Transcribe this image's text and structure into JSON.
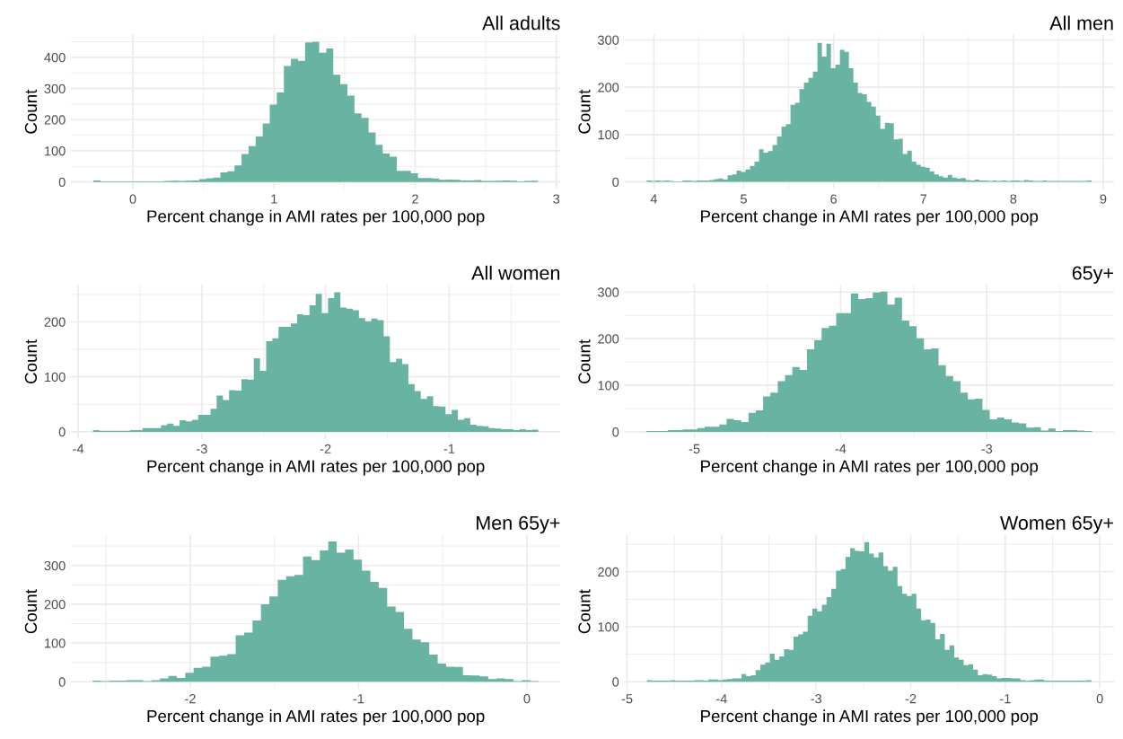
{
  "chart_data": [
    {
      "type": "histogram",
      "title": "All adults",
      "xlabel": "Percent change in AMI rates per 100,000 pop",
      "ylabel": "Count",
      "color": "#69b3a2",
      "grid": true,
      "bins": [
        -0.28,
        -0.23,
        -0.18,
        -0.13,
        -0.08,
        -0.03,
        0.02,
        0.07,
        0.12,
        0.17,
        0.22,
        0.27,
        0.32,
        0.37,
        0.42,
        0.47,
        0.52,
        0.57,
        0.62,
        0.67,
        0.72,
        0.77,
        0.82,
        0.87,
        0.92,
        0.97,
        1.02,
        1.07,
        1.12,
        1.17,
        1.22,
        1.27,
        1.32,
        1.37,
        1.42,
        1.47,
        1.52,
        1.57,
        1.62,
        1.67,
        1.72,
        1.77,
        1.82,
        1.87,
        1.92,
        1.97,
        2.02,
        2.07,
        2.12,
        2.17,
        2.22,
        2.27,
        2.32,
        2.37,
        2.42,
        2.47,
        2.52,
        2.57,
        2.62,
        2.67,
        2.72,
        2.77,
        2.82,
        2.87
      ],
      "values": [
        5,
        2,
        2,
        2,
        2,
        2,
        2,
        2,
        2,
        2,
        3,
        4,
        3,
        4,
        5,
        9,
        12,
        14,
        31,
        34,
        53,
        90,
        115,
        146,
        188,
        248,
        287,
        372,
        395,
        389,
        448,
        450,
        415,
        428,
        344,
        314,
        277,
        220,
        206,
        159,
        119,
        91,
        81,
        36,
        36,
        28,
        13,
        13,
        11,
        7,
        8,
        7,
        5,
        5,
        6,
        3,
        3,
        4,
        5,
        4,
        2,
        3,
        4
      ],
      "xlim": [
        -0.44,
        3.03
      ],
      "xticks": [
        0,
        1,
        2,
        3
      ],
      "ylim": [
        -22.5,
        472.5
      ],
      "yticks": [
        0,
        100,
        200,
        300,
        400
      ]
    },
    {
      "type": "histogram",
      "title": "All men",
      "xlabel": "Percent change in AMI rates per 100,000 pop",
      "ylabel": "Count",
      "color": "#69b3a2",
      "grid": true,
      "bins": [
        3.92,
        3.97,
        4.02,
        4.07,
        4.12,
        4.17,
        4.22,
        4.27,
        4.32,
        4.37,
        4.42,
        4.47,
        4.52,
        4.57,
        4.62,
        4.67,
        4.72,
        4.77,
        4.82,
        4.87,
        4.92,
        4.97,
        5.02,
        5.07,
        5.12,
        5.17,
        5.22,
        5.27,
        5.32,
        5.37,
        5.42,
        5.47,
        5.52,
        5.57,
        5.62,
        5.67,
        5.72,
        5.77,
        5.82,
        5.87,
        5.92,
        5.97,
        6.02,
        6.07,
        6.12,
        6.17,
        6.22,
        6.27,
        6.32,
        6.37,
        6.42,
        6.47,
        6.52,
        6.57,
        6.62,
        6.67,
        6.72,
        6.77,
        6.82,
        6.87,
        6.92,
        6.97,
        7.02,
        7.07,
        7.12,
        7.17,
        7.22,
        7.27,
        7.32,
        7.37,
        7.42,
        7.47,
        7.52,
        7.57,
        7.62,
        7.67,
        7.72,
        7.77,
        7.82,
        7.87,
        7.92,
        7.97,
        8.02,
        8.07,
        8.12,
        8.17,
        8.22,
        8.27,
        8.32,
        8.37,
        8.42,
        8.47,
        8.52,
        8.57,
        8.62,
        8.67,
        8.72,
        8.77,
        8.82,
        8.87
      ],
      "values": [
        3,
        2,
        3,
        2,
        3,
        2,
        1,
        1,
        3,
        3,
        2,
        3,
        3,
        3,
        4,
        6,
        7,
        5,
        14,
        16,
        24,
        21,
        26,
        34,
        43,
        69,
        62,
        65,
        78,
        96,
        117,
        122,
        163,
        167,
        196,
        210,
        220,
        233,
        294,
        265,
        292,
        240,
        248,
        279,
        275,
        240,
        210,
        188,
        185,
        169,
        159,
        140,
        112,
        125,
        124,
        90,
        91,
        59,
        66,
        43,
        36,
        32,
        30,
        22,
        16,
        12,
        9,
        15,
        9,
        7,
        8,
        4,
        3,
        5,
        3,
        3,
        2,
        3,
        2,
        3,
        2,
        3,
        3,
        2,
        4,
        3,
        2,
        2,
        3,
        2,
        2,
        2,
        2,
        2,
        2,
        2,
        2,
        2,
        3
      ],
      "xlim": [
        3.67,
        9.12
      ],
      "xticks": [
        4,
        5,
        6,
        7,
        8,
        9
      ],
      "ylim": [
        -15,
        311
      ],
      "yticks": [
        0,
        100,
        200,
        300
      ]
    },
    {
      "type": "histogram",
      "title": "All women",
      "xlabel": "Percent change in AMI rates per 100,000 pop",
      "ylabel": "Count",
      "color": "#69b3a2",
      "grid": true,
      "bins": [
        -3.88,
        -3.83,
        -3.78,
        -3.73,
        -3.68,
        -3.63,
        -3.58,
        -3.53,
        -3.48,
        -3.43,
        -3.38,
        -3.33,
        -3.28,
        -3.23,
        -3.18,
        -3.13,
        -3.08,
        -3.03,
        -2.98,
        -2.93,
        -2.88,
        -2.83,
        -2.78,
        -2.73,
        -2.68,
        -2.63,
        -2.58,
        -2.53,
        -2.48,
        -2.43,
        -2.38,
        -2.33,
        -2.28,
        -2.23,
        -2.18,
        -2.13,
        -2.08,
        -2.03,
        -1.98,
        -1.93,
        -1.88,
        -1.83,
        -1.78,
        -1.73,
        -1.68,
        -1.63,
        -1.58,
        -1.53,
        -1.48,
        -1.43,
        -1.38,
        -1.33,
        -1.28,
        -1.23,
        -1.18,
        -1.13,
        -1.08,
        -1.03,
        -0.98,
        -0.93,
        -0.88,
        -0.83,
        -0.78,
        -0.73,
        -0.68,
        -0.63,
        -0.58,
        -0.53,
        -0.48,
        -0.43,
        -0.38,
        -0.33,
        -0.28
      ],
      "values": [
        3,
        2,
        2,
        2,
        2,
        2,
        3,
        3,
        7,
        7,
        7,
        12,
        15,
        11,
        21,
        19,
        22,
        31,
        31,
        42,
        66,
        58,
        76,
        75,
        96,
        95,
        134,
        111,
        165,
        170,
        191,
        191,
        197,
        214,
        212,
        230,
        251,
        216,
        243,
        254,
        226,
        224,
        221,
        207,
        201,
        206,
        203,
        174,
        127,
        133,
        123,
        87,
        74,
        60,
        65,
        47,
        46,
        32,
        40,
        22,
        25,
        13,
        11,
        10,
        7,
        6,
        5,
        5,
        3,
        5,
        3,
        4
      ],
      "xlim": [
        -4.06,
        -0.1
      ],
      "xticks": [
        -4,
        -3,
        -2,
        -1
      ],
      "ylim": [
        -12.75,
        267.75
      ],
      "yticks": [
        0,
        100,
        200
      ]
    },
    {
      "type": "histogram",
      "title": "65y+",
      "xlabel": "Percent change in AMI rates per 100,000 pop",
      "ylabel": "Count",
      "color": "#69b3a2",
      "grid": true,
      "bins": [
        -5.33,
        -5.28,
        -5.23,
        -5.18,
        -5.13,
        -5.08,
        -5.03,
        -4.98,
        -4.93,
        -4.88,
        -4.83,
        -4.78,
        -4.73,
        -4.68,
        -4.63,
        -4.58,
        -4.53,
        -4.48,
        -4.43,
        -4.38,
        -4.33,
        -4.28,
        -4.23,
        -4.18,
        -4.13,
        -4.08,
        -4.03,
        -3.98,
        -3.93,
        -3.88,
        -3.83,
        -3.78,
        -3.73,
        -3.68,
        -3.63,
        -3.58,
        -3.53,
        -3.48,
        -3.43,
        -3.38,
        -3.33,
        -3.28,
        -3.23,
        -3.18,
        -3.13,
        -3.08,
        -3.03,
        -2.98,
        -2.93,
        -2.88,
        -2.83,
        -2.78,
        -2.73,
        -2.68,
        -2.63,
        -2.58,
        -2.53,
        -2.48,
        -2.43,
        -2.38,
        -2.33,
        -2.28
      ],
      "values": [
        2,
        2,
        2,
        4,
        4,
        5,
        5,
        8,
        11,
        11,
        16,
        28,
        25,
        21,
        41,
        46,
        76,
        84,
        109,
        122,
        139,
        133,
        177,
        197,
        223,
        228,
        255,
        255,
        297,
        285,
        287,
        299,
        301,
        273,
        288,
        239,
        227,
        201,
        177,
        179,
        143,
        120,
        109,
        84,
        70,
        71,
        47,
        27,
        31,
        27,
        20,
        18,
        9,
        10,
        3,
        7,
        2,
        4,
        4,
        3,
        2
      ],
      "xlim": [
        -5.48,
        -2.13
      ],
      "xticks": [
        -5,
        -4,
        -3
      ],
      "ylim": [
        -15,
        316
      ],
      "yticks": [
        0,
        100,
        200,
        300
      ]
    },
    {
      "type": "histogram",
      "title": "Men 65y+",
      "xlabel": "Percent change in AMI rates per 100,000 pop",
      "ylabel": "Count",
      "color": "#69b3a2",
      "grid": true,
      "bins": [
        -2.58,
        -2.53,
        -2.48,
        -2.43,
        -2.38,
        -2.33,
        -2.28,
        -2.23,
        -2.18,
        -2.13,
        -2.08,
        -2.03,
        -1.98,
        -1.93,
        -1.88,
        -1.83,
        -1.78,
        -1.73,
        -1.68,
        -1.63,
        -1.58,
        -1.53,
        -1.48,
        -1.43,
        -1.38,
        -1.33,
        -1.28,
        -1.23,
        -1.18,
        -1.13,
        -1.08,
        -1.03,
        -0.98,
        -0.93,
        -0.88,
        -0.83,
        -0.78,
        -0.73,
        -0.68,
        -0.63,
        -0.58,
        -0.53,
        -0.48,
        -0.43,
        -0.38,
        -0.33,
        -0.28,
        -0.23,
        -0.18,
        -0.13,
        -0.08,
        -0.03,
        0.02,
        0.07
      ],
      "values": [
        3,
        2,
        3,
        3,
        4,
        4,
        2,
        4,
        9,
        15,
        10,
        23,
        36,
        39,
        65,
        67,
        71,
        120,
        127,
        158,
        200,
        220,
        263,
        272,
        276,
        323,
        314,
        339,
        362,
        333,
        341,
        315,
        287,
        258,
        242,
        194,
        180,
        137,
        109,
        102,
        70,
        47,
        39,
        38,
        17,
        16,
        14,
        7,
        9,
        7,
        2,
        4,
        2
      ],
      "xlim": [
        -2.71,
        0.2
      ],
      "xticks": [
        -2,
        -1,
        0
      ],
      "ylim": [
        -18,
        380
      ],
      "yticks": [
        0,
        100,
        200,
        300
      ]
    },
    {
      "type": "histogram",
      "title": "Women 65y+",
      "xlabel": "Percent change in AMI rates per 100,000 pop",
      "ylabel": "Count",
      "color": "#69b3a2",
      "grid": true,
      "bins": [
        -4.79,
        -4.74,
        -4.69,
        -4.64,
        -4.59,
        -4.54,
        -4.49,
        -4.44,
        -4.39,
        -4.34,
        -4.29,
        -4.24,
        -4.19,
        -4.14,
        -4.09,
        -4.04,
        -3.99,
        -3.94,
        -3.89,
        -3.84,
        -3.79,
        -3.74,
        -3.69,
        -3.64,
        -3.59,
        -3.54,
        -3.49,
        -3.44,
        -3.39,
        -3.34,
        -3.29,
        -3.24,
        -3.19,
        -3.14,
        -3.09,
        -3.04,
        -2.99,
        -2.94,
        -2.89,
        -2.84,
        -2.79,
        -2.74,
        -2.69,
        -2.64,
        -2.59,
        -2.54,
        -2.49,
        -2.44,
        -2.39,
        -2.34,
        -2.29,
        -2.24,
        -2.19,
        -2.14,
        -2.09,
        -2.04,
        -1.99,
        -1.94,
        -1.89,
        -1.84,
        -1.79,
        -1.74,
        -1.69,
        -1.64,
        -1.59,
        -1.54,
        -1.49,
        -1.44,
        -1.39,
        -1.34,
        -1.29,
        -1.24,
        -1.19,
        -1.14,
        -1.09,
        -1.04,
        -0.99,
        -0.94,
        -0.89,
        -0.84,
        -0.79,
        -0.74,
        -0.69,
        -0.64,
        -0.59,
        -0.54,
        -0.49,
        -0.44,
        -0.39,
        -0.34,
        -0.29,
        -0.24,
        -0.19,
        -0.14,
        -0.09
      ],
      "values": [
        3,
        2,
        2,
        2,
        2,
        3,
        2,
        2,
        2,
        2,
        3,
        3,
        2,
        4,
        4,
        3,
        4,
        5,
        6,
        6,
        14,
        10,
        12,
        21,
        31,
        35,
        51,
        40,
        46,
        59,
        58,
        82,
        86,
        91,
        120,
        133,
        128,
        140,
        154,
        169,
        202,
        205,
        227,
        243,
        238,
        237,
        254,
        233,
        226,
        235,
        210,
        202,
        209,
        174,
        160,
        156,
        160,
        133,
        112,
        113,
        107,
        77,
        87,
        58,
        66,
        44,
        40,
        30,
        32,
        22,
        12,
        14,
        13,
        10,
        6,
        7,
        7,
        6,
        6,
        3,
        2,
        3,
        4,
        4,
        2,
        2,
        2,
        2,
        2,
        2,
        2,
        2,
        2,
        3
      ],
      "xlim": [
        -5.03,
        0.15
      ],
      "xticks": [
        -5,
        -4,
        -3,
        -2,
        -1,
        0
      ],
      "ylim": [
        -12.75,
        267.75
      ],
      "yticks": [
        0,
        100,
        200
      ]
    }
  ]
}
